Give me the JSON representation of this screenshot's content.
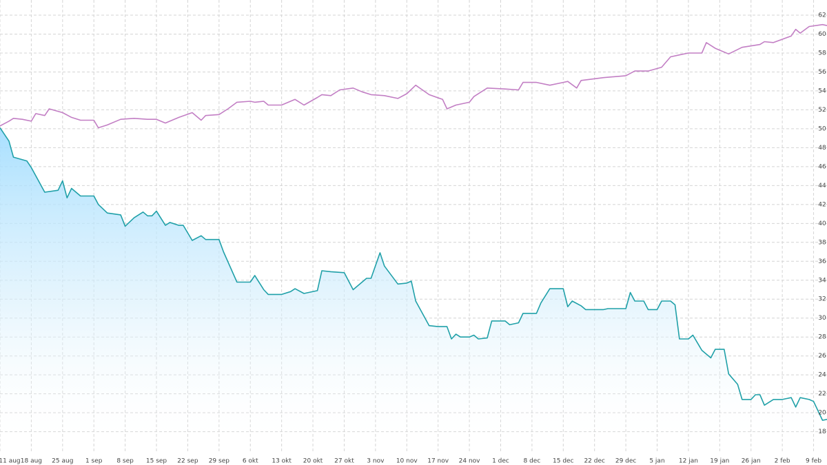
{
  "chart_data": {
    "type": "line",
    "xlim": [
      0,
      185
    ],
    "ylim": [
      16.3,
      63.6
    ],
    "xticks": [
      {
        "value": 0,
        "label": "11 aug"
      },
      {
        "value": 7,
        "label": "18 aug"
      },
      {
        "value": 14,
        "label": "25 aug"
      },
      {
        "value": 21,
        "label": "1 sep"
      },
      {
        "value": 28,
        "label": "8 sep"
      },
      {
        "value": 35,
        "label": "15 sep"
      },
      {
        "value": 42,
        "label": "22 sep"
      },
      {
        "value": 49,
        "label": "29 sep"
      },
      {
        "value": 56,
        "label": "6 okt"
      },
      {
        "value": 63,
        "label": "13 okt"
      },
      {
        "value": 70,
        "label": "20 okt"
      },
      {
        "value": 77,
        "label": "27 okt"
      },
      {
        "value": 84,
        "label": "3 nov"
      },
      {
        "value": 91,
        "label": "10 nov"
      },
      {
        "value": 98,
        "label": "17 nov"
      },
      {
        "value": 105,
        "label": "24 nov"
      },
      {
        "value": 112,
        "label": "1 dec"
      },
      {
        "value": 119,
        "label": "8 dec"
      },
      {
        "value": 126,
        "label": "15 dec"
      },
      {
        "value": 133,
        "label": "22 dec"
      },
      {
        "value": 140,
        "label": "29 dec"
      },
      {
        "value": 147,
        "label": "5 jan"
      },
      {
        "value": 154,
        "label": "12 jan"
      },
      {
        "value": 161,
        "label": "19 jan"
      },
      {
        "value": 168,
        "label": "26 jan"
      },
      {
        "value": 175,
        "label": "2 feb"
      },
      {
        "value": 182,
        "label": "9 feb"
      }
    ],
    "yticks": [
      18,
      20,
      22,
      24,
      26,
      28,
      30,
      32,
      34,
      36,
      38,
      40,
      42,
      44,
      46,
      48,
      50,
      52,
      54,
      56,
      58,
      60,
      62
    ],
    "grid": true,
    "series": [
      {
        "color": "#c27ec4",
        "area": false,
        "x": [
          0,
          2,
          3,
          5,
          7,
          8,
          10,
          11,
          14,
          16,
          18,
          21,
          22,
          24,
          27,
          30,
          33,
          35,
          37,
          40,
          43,
          45,
          46,
          49,
          51,
          53,
          56,
          57,
          59,
          60,
          63,
          65,
          66,
          68,
          71,
          72,
          74,
          76,
          79,
          81,
          83,
          86,
          89,
          91,
          93,
          96,
          99,
          100,
          102,
          105,
          106,
          109,
          113,
          116,
          117,
          120,
          123,
          126,
          127,
          129,
          130,
          135,
          140,
          142,
          145,
          148,
          150,
          152,
          154,
          157,
          158,
          160,
          163,
          166,
          170,
          171,
          173,
          177,
          178,
          179,
          181,
          184,
          185
        ],
        "values": [
          50.3,
          50.8,
          51.1,
          51,
          50.8,
          51.6,
          51.4,
          52.1,
          51.7,
          51.2,
          50.9,
          50.9,
          50.1,
          50.4,
          51,
          51.1,
          51,
          51,
          50.6,
          51.2,
          51.7,
          50.9,
          51.4,
          51.5,
          52.1,
          52.8,
          52.9,
          52.8,
          52.9,
          52.5,
          52.5,
          52.9,
          53.1,
          52.5,
          53.3,
          53.6,
          53.5,
          54.1,
          54.3,
          53.9,
          53.6,
          53.5,
          53.2,
          53.7,
          54.6,
          53.6,
          53.1,
          52.1,
          52.5,
          52.8,
          53.4,
          54.3,
          54.2,
          54.1,
          54.9,
          54.9,
          54.6,
          54.9,
          55,
          54.3,
          55.1,
          55.4,
          55.6,
          56.1,
          56.1,
          56.5,
          57.6,
          57.8,
          58,
          58,
          59.1,
          58.5,
          57.9,
          58.6,
          58.9,
          59.2,
          59.1,
          59.8,
          60.5,
          60.1,
          60.8,
          61,
          60.9
        ]
      },
      {
        "color": "#1fa0a8",
        "area": true,
        "x": [
          0,
          2,
          3,
          6,
          7,
          10,
          13,
          14,
          15,
          16,
          18,
          21,
          22,
          24,
          27,
          28,
          30,
          32,
          33,
          34,
          35,
          37,
          38,
          40,
          41,
          43,
          45,
          46,
          49,
          50,
          53,
          56,
          57,
          59,
          60,
          63,
          65,
          66,
          68,
          71,
          72,
          74,
          77,
          79,
          81,
          82,
          83,
          85,
          86,
          89,
          91,
          92,
          93,
          96,
          98,
          100,
          101,
          102,
          103,
          105,
          106,
          107,
          109,
          110,
          113,
          114,
          116,
          117,
          120,
          121,
          123,
          126,
          127,
          128,
          130,
          131,
          135,
          136,
          140,
          141,
          142,
          144,
          145,
          147,
          148,
          150,
          151,
          152,
          154,
          155,
          157,
          159,
          160,
          162,
          163,
          165,
          166,
          168,
          169,
          170,
          171,
          173,
          175,
          176,
          177,
          178,
          179,
          181,
          182,
          184,
          185
        ],
        "values": [
          50.1,
          48.7,
          47,
          46.6,
          45.9,
          43.3,
          43.5,
          44.5,
          42.7,
          43.7,
          42.9,
          42.9,
          42,
          41.1,
          40.9,
          39.7,
          40.6,
          41.2,
          40.8,
          40.8,
          41.3,
          39.8,
          40.1,
          39.8,
          39.8,
          38.2,
          38.7,
          38.3,
          38.3,
          37,
          33.8,
          33.8,
          34.5,
          33,
          32.5,
          32.5,
          32.8,
          33.1,
          32.6,
          32.9,
          35,
          34.9,
          34.8,
          33,
          33.8,
          34.2,
          34.2,
          36.9,
          35.5,
          33.6,
          33.7,
          33.9,
          31.8,
          29.2,
          29.1,
          29.1,
          27.8,
          28.3,
          28,
          28,
          28.2,
          27.8,
          27.9,
          29.7,
          29.7,
          29.3,
          29.5,
          30.5,
          30.5,
          31.6,
          33.1,
          33.1,
          31.2,
          31.8,
          31.3,
          30.9,
          30.9,
          31,
          31,
          32.7,
          31.8,
          31.8,
          30.9,
          30.9,
          31.8,
          31.8,
          31.4,
          27.8,
          27.8,
          28.2,
          26.6,
          25.8,
          26.7,
          26.7,
          24.1,
          23,
          21.4,
          21.4,
          21.9,
          21.9,
          20.8,
          21.4,
          21.4,
          21.5,
          21.6,
          20.6,
          21.6,
          21.4,
          21.2,
          19.2,
          19.3
        ]
      }
    ]
  }
}
